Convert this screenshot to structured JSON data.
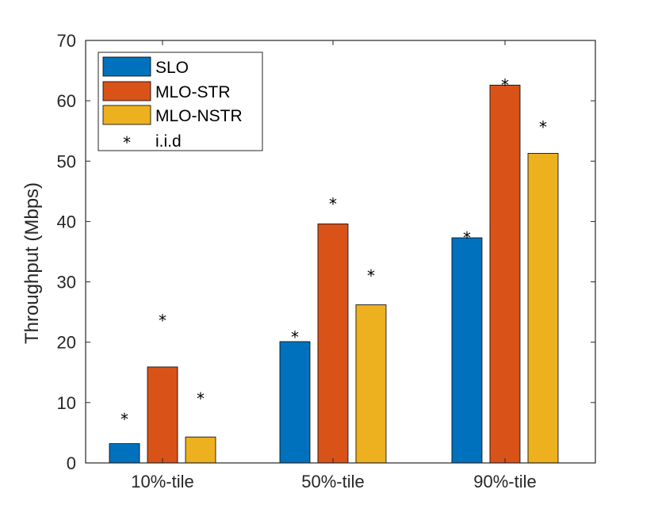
{
  "chart_data": {
    "type": "bar",
    "title": "",
    "xlabel": "",
    "ylabel": "Throughput (Mbps)",
    "ylim": [
      0,
      70
    ],
    "yticks": [
      "0",
      "10",
      "20",
      "30",
      "40",
      "50",
      "60",
      "70"
    ],
    "categories": [
      "10%-tile",
      "50%-tile",
      "90%-tile"
    ],
    "grid": false,
    "legend_position": "top-left",
    "series": [
      {
        "name": "SLO",
        "color": "#0072BD",
        "values": [
          3.2,
          20.1,
          37.3
        ]
      },
      {
        "name": "MLO-STR",
        "color": "#D95319",
        "values": [
          15.9,
          39.6,
          62.6
        ]
      },
      {
        "name": "MLO-NSTR",
        "color": "#EDB120",
        "values": [
          4.3,
          26.2,
          51.3
        ]
      }
    ],
    "markers": {
      "name": "i.i.d",
      "symbol": "*",
      "values": [
        [
          7.6,
          24.0,
          11.0
        ],
        [
          21.2,
          43.3,
          31.4
        ],
        [
          37.7,
          63.0,
          56.0
        ]
      ]
    }
  }
}
